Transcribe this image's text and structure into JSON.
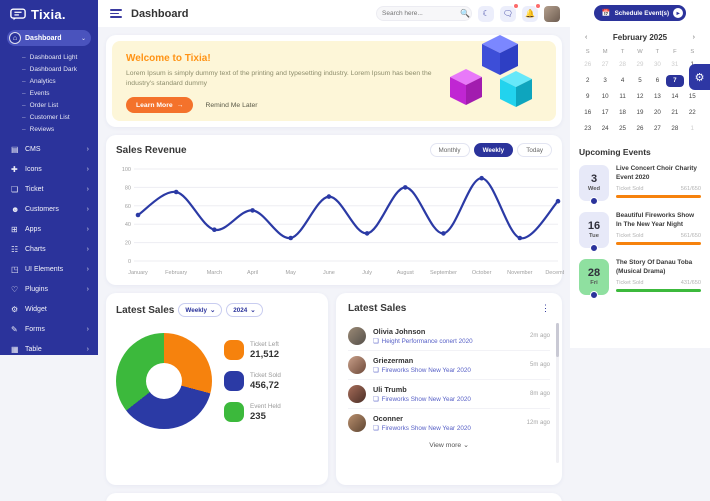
{
  "brand": {
    "name": "Tixia."
  },
  "header": {
    "title": "Dashboard",
    "search_placeholder": "Search here..."
  },
  "sidebar": {
    "items": [
      {
        "label": "Dashboard",
        "icon": "dashboard",
        "active": true,
        "children": [
          "Dashboard Light",
          "Dashboard Dark",
          "Analytics",
          "Events",
          "Order List",
          "Customer List",
          "Reviews"
        ]
      },
      {
        "label": "CMS",
        "icon": "cms",
        "chevron": true
      },
      {
        "label": "Icons",
        "icon": "icons",
        "chevron": true
      },
      {
        "label": "Ticket",
        "icon": "ticket",
        "chevron": true
      },
      {
        "label": "Customers",
        "icon": "customers",
        "chevron": true
      },
      {
        "label": "Apps",
        "icon": "apps",
        "chevron": true
      },
      {
        "label": "Charts",
        "icon": "charts",
        "chevron": true
      },
      {
        "label": "UI Elements",
        "icon": "ui-elements",
        "chevron": true
      },
      {
        "label": "Plugins",
        "icon": "plugins",
        "chevron": true
      },
      {
        "label": "Widget",
        "icon": "widget",
        "chevron": false
      },
      {
        "label": "Forms",
        "icon": "forms",
        "chevron": true
      },
      {
        "label": "Table",
        "icon": "table",
        "chevron": true
      }
    ]
  },
  "welcome": {
    "title": "Welcome to Tixia!",
    "body": "Lorem Ipsum is simply dummy text of the printing and typesetting industry. Lorem Ipsum has been the industry's standard dummy",
    "learn_more": "Learn More",
    "learn_more_arrow": "→",
    "remind": "Remind Me Later"
  },
  "sales_revenue": {
    "title": "Sales Revenue",
    "tabs": [
      "Monthly",
      "Weekly",
      "Today"
    ],
    "active_tab": "Weekly"
  },
  "chart_data": {
    "type": "line",
    "title": "Sales Revenue",
    "x": [
      "January",
      "February",
      "March",
      "April",
      "May",
      "June",
      "July",
      "August",
      "September",
      "October",
      "November",
      "December"
    ],
    "series": [
      {
        "name": "Sales Revenue",
        "values": [
          50,
          75,
          34,
          55,
          25,
          70,
          30,
          80,
          30,
          90,
          25,
          65
        ]
      }
    ],
    "ylim": [
      0,
      100
    ],
    "yticks": [
      0,
      20,
      40,
      60,
      80,
      100
    ],
    "line_color": "#2b3aa5",
    "grid": true,
    "legend_position": "none"
  },
  "latest_sales_chart": {
    "title": "Latest Sales",
    "filters": [
      "Weekly",
      "2024"
    ],
    "donut": {
      "slices": [
        {
          "label": "Ticket Left",
          "value": "21,512",
          "color": "#f6820d",
          "deg": 105
        },
        {
          "label": "Ticket Sold",
          "value": "456,72",
          "color": "#2b3aa5",
          "deg": 127
        },
        {
          "label": "Event Held",
          "value": "235",
          "color": "#3cb93c",
          "deg": 128
        }
      ]
    }
  },
  "latest_sales_list": {
    "title": "Latest Sales",
    "items": [
      {
        "name": "Olivia Johnson",
        "event": "Height Performance conert 2020",
        "time": "2m ago"
      },
      {
        "name": "Griezerman",
        "event": "Fireworks Show New Year 2020",
        "time": "5m ago"
      },
      {
        "name": "Uli Trumb",
        "event": "Fireworks Show New Year 2020",
        "time": "8m ago"
      },
      {
        "name": "Oconner",
        "event": "Fireworks Show New Year 2020",
        "time": "12m ago"
      }
    ],
    "view_more": "View more"
  },
  "right_panel": {
    "schedule_button": "Schedule Event(s)",
    "calendar": {
      "month": "February 2025",
      "weekdays": [
        "S",
        "M",
        "T",
        "W",
        "T",
        "F",
        "S"
      ],
      "days": [
        {
          "d": "26",
          "muted": true
        },
        {
          "d": "27",
          "muted": true
        },
        {
          "d": "28",
          "muted": true
        },
        {
          "d": "29",
          "muted": true
        },
        {
          "d": "30",
          "muted": true
        },
        {
          "d": "31",
          "muted": true
        },
        {
          "d": "1"
        },
        {
          "d": "2"
        },
        {
          "d": "3"
        },
        {
          "d": "4"
        },
        {
          "d": "5"
        },
        {
          "d": "6"
        },
        {
          "d": "7",
          "selected": true
        },
        {
          "d": "8"
        },
        {
          "d": "9"
        },
        {
          "d": "10"
        },
        {
          "d": "11"
        },
        {
          "d": "12"
        },
        {
          "d": "13"
        },
        {
          "d": "14"
        },
        {
          "d": "15"
        },
        {
          "d": "16"
        },
        {
          "d": "17"
        },
        {
          "d": "18"
        },
        {
          "d": "19"
        },
        {
          "d": "20"
        },
        {
          "d": "21"
        },
        {
          "d": "22"
        },
        {
          "d": "23"
        },
        {
          "d": "24"
        },
        {
          "d": "25"
        },
        {
          "d": "26"
        },
        {
          "d": "27"
        },
        {
          "d": "28"
        },
        {
          "d": "1",
          "muted": true
        }
      ]
    },
    "upcoming": {
      "title": "Upcoming Events",
      "events": [
        {
          "day": "3",
          "weekday": "Wed",
          "title": "Live Concert Choir Charity Event 2020",
          "ticket_label": "Ticket Sold",
          "ticket_value": "561/650",
          "bar_color": "#f6820d",
          "badge_color": "#e7e9f8"
        },
        {
          "day": "16",
          "weekday": "Tue",
          "title": "Beautiful Fireworks Show In The New Year Night",
          "ticket_label": "Ticket Sold",
          "ticket_value": "561/650",
          "bar_color": "#f6820d",
          "badge_color": "#e7e9f8"
        },
        {
          "day": "28",
          "weekday": "Fri",
          "title": "The Story Of Danau Toba (Musical Drama)",
          "ticket_label": "Ticket Sold",
          "ticket_value": "431/650",
          "bar_color": "#3cb93c",
          "badge_color": "#8fe0a0"
        }
      ]
    }
  },
  "colors": {
    "sidebar": "#2b339b",
    "primary": "#2e37a4",
    "orange": "#f4722b",
    "green": "#3cb93c",
    "banner_bg": "#fdf6d8"
  }
}
